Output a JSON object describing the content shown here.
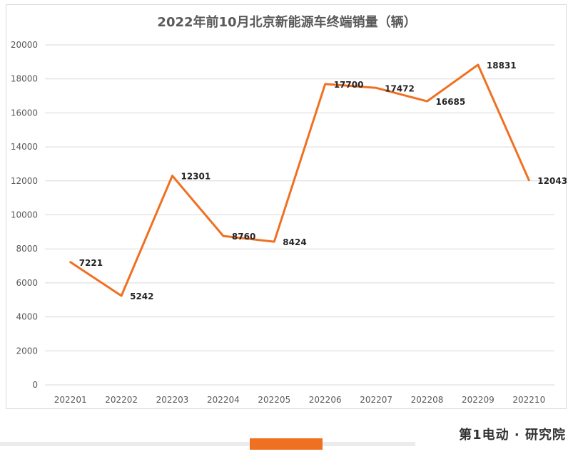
{
  "chart_data": {
    "type": "line",
    "title": "2022年前10月北京新能源车终端销量（辆）",
    "categories": [
      "202201",
      "202202",
      "202203",
      "202204",
      "202205",
      "202206",
      "202207",
      "202208",
      "202209",
      "202210"
    ],
    "series": [
      {
        "values": [
          7221,
          5242,
          12301,
          8760,
          8424,
          17700,
          17472,
          16685,
          18831,
          12043
        ]
      }
    ],
    "ylim": [
      0,
      20000
    ],
    "yticks": [
      0,
      2000,
      4000,
      6000,
      8000,
      10000,
      12000,
      14000,
      16000,
      18000,
      20000
    ],
    "grid": true,
    "line_color": "#f07022",
    "grid_color": "#d9d9d9"
  },
  "footer": {
    "brand": "第1电动 · 研究院"
  }
}
